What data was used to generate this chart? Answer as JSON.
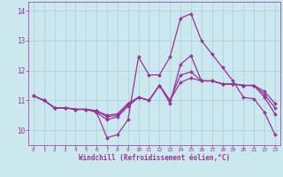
{
  "xlabel": "Windchill (Refroidissement éolien,°C)",
  "background_color": "#cce8ef",
  "grid_color": "#aacdd8",
  "line_color": "#993399",
  "xlim": [
    -0.5,
    23.5
  ],
  "ylim": [
    9.5,
    14.3
  ],
  "yticks": [
    10,
    11,
    12,
    13,
    14
  ],
  "xticks": [
    0,
    1,
    2,
    3,
    4,
    5,
    6,
    7,
    8,
    9,
    10,
    11,
    12,
    13,
    14,
    15,
    16,
    17,
    18,
    19,
    20,
    21,
    22,
    23
  ],
  "series": [
    [
      11.15,
      11.0,
      10.75,
      10.75,
      10.7,
      10.7,
      10.6,
      9.75,
      9.85,
      10.35,
      12.45,
      11.85,
      11.85,
      12.45,
      13.75,
      13.9,
      13.0,
      12.55,
      12.1,
      11.65,
      11.1,
      11.05,
      10.6,
      9.85
    ],
    [
      11.15,
      11.0,
      10.75,
      10.75,
      10.7,
      10.7,
      10.6,
      10.35,
      10.45,
      10.8,
      11.1,
      11.0,
      11.5,
      10.9,
      12.2,
      12.5,
      11.65,
      11.65,
      11.55,
      11.55,
      11.5,
      11.5,
      11.3,
      10.9
    ],
    [
      11.15,
      11.0,
      10.75,
      10.75,
      10.7,
      10.7,
      10.65,
      10.45,
      10.5,
      10.85,
      11.1,
      11.0,
      11.5,
      11.0,
      11.85,
      11.95,
      11.65,
      11.65,
      11.55,
      11.55,
      11.5,
      11.5,
      11.2,
      10.75
    ],
    [
      11.15,
      11.0,
      10.75,
      10.75,
      10.7,
      10.7,
      10.65,
      10.5,
      10.55,
      10.9,
      11.1,
      11.0,
      11.5,
      11.0,
      11.6,
      11.75,
      11.65,
      11.65,
      11.55,
      11.55,
      11.5,
      11.5,
      11.1,
      10.55
    ]
  ]
}
